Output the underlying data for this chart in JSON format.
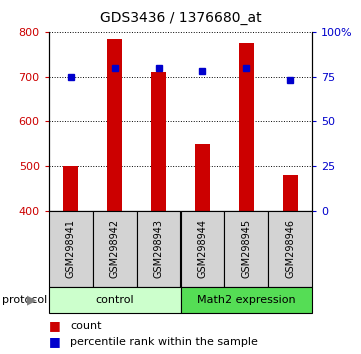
{
  "title": "GDS3436 / 1376680_at",
  "samples": [
    "GSM298941",
    "GSM298942",
    "GSM298943",
    "GSM298944",
    "GSM298945",
    "GSM298946"
  ],
  "counts": [
    500,
    783,
    710,
    550,
    775,
    480
  ],
  "percentiles": [
    75,
    80,
    80,
    78,
    80,
    73
  ],
  "ylim_left": [
    400,
    800
  ],
  "ylim_right": [
    0,
    100
  ],
  "yticks_left": [
    400,
    500,
    600,
    700,
    800
  ],
  "yticks_right": [
    0,
    25,
    50,
    75,
    100
  ],
  "ytick_labels_right": [
    "0",
    "25",
    "50",
    "75",
    "100%"
  ],
  "bar_color": "#cc0000",
  "dot_color": "#0000cc",
  "group_labels": [
    "control",
    "Math2 expression"
  ],
  "group_ranges": [
    [
      0,
      3
    ],
    [
      3,
      6
    ]
  ],
  "group_colors_light": "#ccffcc",
  "group_colors_dark": "#55dd55",
  "sample_box_color": "#d3d3d3",
  "legend_red_label": "count",
  "legend_blue_label": "percentile rank within the sample",
  "background_color": "#ffffff",
  "title_fontsize": 10,
  "tick_fontsize": 8,
  "bar_width": 0.35
}
